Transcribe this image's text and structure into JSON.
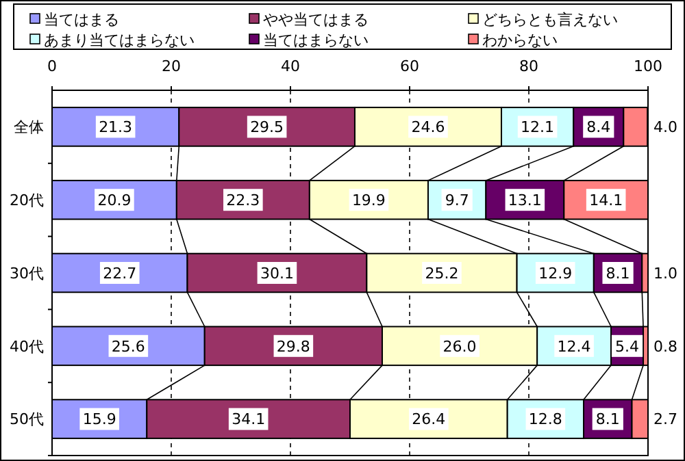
{
  "chart_data": {
    "type": "bar",
    "orientation": "horizontal",
    "stacked": true,
    "categories": [
      "全体",
      "20代",
      "30代",
      "40代",
      "50代"
    ],
    "series": [
      {
        "name": "当てはまる",
        "color": "#9999ff",
        "values": [
          21.3,
          20.9,
          22.7,
          25.6,
          15.9
        ],
        "value_labels": [
          "21.3",
          "20.9",
          "22.7",
          "25.6",
          "15.9"
        ]
      },
      {
        "name": "やや当てはまる",
        "color": "#993366",
        "values": [
          29.5,
          22.3,
          30.1,
          29.8,
          34.1
        ],
        "value_labels": [
          "29.5",
          "22.3",
          "30.1",
          "29.8",
          "34.1"
        ]
      },
      {
        "name": "どちらとも言えない",
        "color": "#ffffcc",
        "values": [
          24.6,
          19.9,
          25.2,
          26,
          26.4
        ],
        "value_labels": [
          "24.6",
          "19.9",
          "25.2",
          "26.0",
          "26.4"
        ]
      },
      {
        "name": "あまり当てはまらない",
        "color": "#ccffff",
        "values": [
          12.1,
          9.7,
          12.9,
          12.4,
          12.8
        ],
        "value_labels": [
          "12.1",
          "9.7",
          "12.9",
          "12.4",
          "12.8"
        ]
      },
      {
        "name": "当てはまらない",
        "color": "#660066",
        "values": [
          8.4,
          13.1,
          8.1,
          5.4,
          8.1
        ],
        "value_labels": [
          "8.4",
          "13.1",
          "8.1",
          "5.4",
          "8.1"
        ]
      },
      {
        "name": "わからない",
        "color": "#ff8080",
        "values": [
          4,
          14.1,
          1,
          0.8,
          2.7
        ],
        "value_labels": [
          "4.0",
          "14.1",
          "1.0",
          "0.8",
          "2.7"
        ]
      }
    ],
    "xlim": [
      0,
      100
    ],
    "xticks": [
      0,
      20,
      40,
      60,
      80,
      100
    ],
    "grid": "x",
    "legend": "top"
  }
}
